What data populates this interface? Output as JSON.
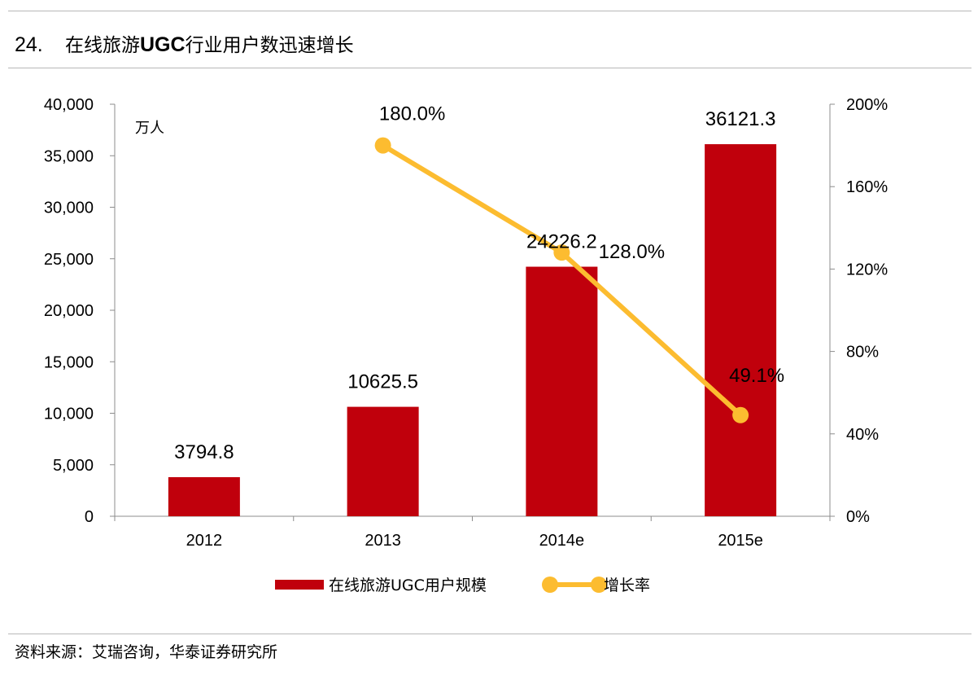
{
  "figure": {
    "number": "24.",
    "title_prefix": "在线旅游",
    "title_bold": "UGC",
    "title_suffix": "行业用户数迅速增长"
  },
  "source": "资料来源：艾瑞咨询，华泰证券研究所",
  "colors": {
    "bar": "#c0000c",
    "line": "#fcbc30",
    "axis": "#8c8c8c",
    "rule": "#b8b8b8"
  },
  "chart_data": {
    "type": "bar+line",
    "categories": [
      "2012",
      "2013",
      "2014e",
      "2015e"
    ],
    "unit_label": "万人",
    "y_left": {
      "min": 0,
      "max": 40000,
      "step": 5000,
      "tick_labels": [
        "0",
        "5,000",
        "10,000",
        "15,000",
        "20,000",
        "25,000",
        "30,000",
        "35,000",
        "40,000"
      ]
    },
    "y_right": {
      "min": 0,
      "max": 200,
      "step": 40,
      "tick_labels": [
        "0%",
        "40%",
        "80%",
        "120%",
        "160%",
        "200%"
      ]
    },
    "series": [
      {
        "name": "在线旅游UGC用户规模",
        "type": "bar",
        "axis": "left",
        "values": [
          3794.8,
          10625.5,
          24226.2,
          36121.3
        ],
        "labels": [
          "3794.8",
          "10625.5",
          "24226.2",
          "36121.3"
        ]
      },
      {
        "name": "增长率",
        "type": "line",
        "axis": "right",
        "values": [
          null,
          180.0,
          128.0,
          49.1
        ],
        "labels": [
          "",
          "180.0%",
          "128.0%",
          "49.1%"
        ]
      }
    ],
    "grid": false,
    "legend": "bottom-center"
  }
}
